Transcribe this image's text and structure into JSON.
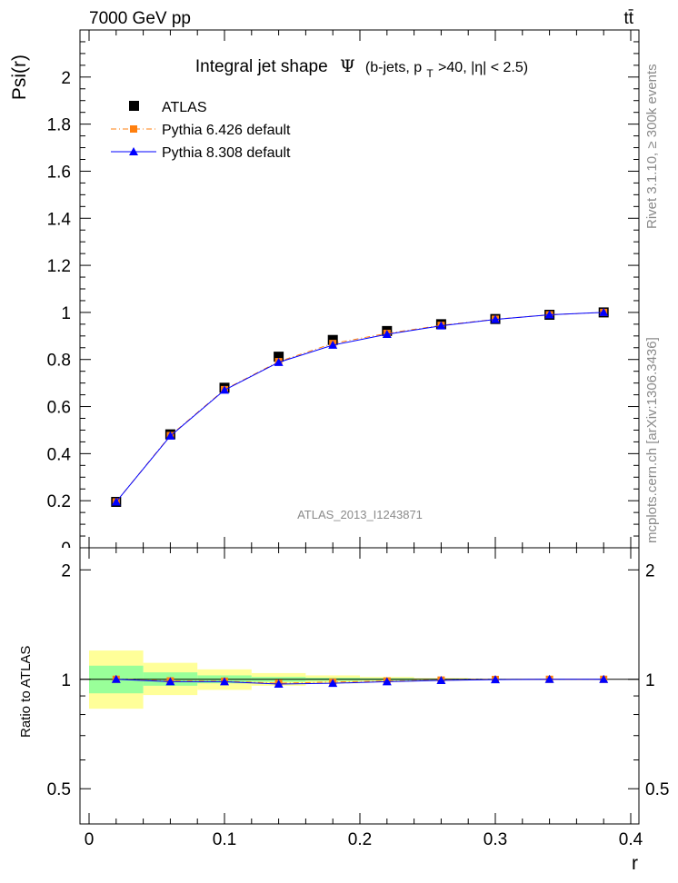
{
  "header": {
    "energy_label": "7000 GeV pp",
    "process_label": "tt̄"
  },
  "side_labels": {
    "rivet": "Rivet 3.1.10, ≥ 300k events",
    "mcplots": "mcplots.cern.ch [arXiv:1306.3436]"
  },
  "chart_data": {
    "type": "scatter",
    "title": {
      "main": "Integral jet shape",
      "symbol": "Ψ",
      "open": "(b-jets, p",
      "sub": "T",
      "rest": ">40, |η| < 2.5)"
    },
    "watermark": "ATLAS_2013_I1243871",
    "xlabel": "r",
    "ylabel": "Psi(r)",
    "ratio_ylabel": "Ratio to ATLAS",
    "xlim": [
      0,
      0.4
    ],
    "ylim": [
      0,
      2.2
    ],
    "ratio_ylim": [
      0.4,
      2.3
    ],
    "x_ticks": [
      "0",
      "0.1",
      "0.2",
      "0.3",
      "0.4"
    ],
    "y_ticks": [
      "0.2",
      "0.4",
      "0.6",
      "0.8",
      "1",
      "1.2",
      "1.4",
      "1.6",
      "1.8",
      "2"
    ],
    "ratio_ticks": [
      "0.5",
      "1",
      "2"
    ],
    "x": [
      0.02,
      0.06,
      0.1,
      0.14,
      0.18,
      0.22,
      0.26,
      0.3,
      0.34,
      0.38
    ],
    "bin_edges": [
      0.0,
      0.04,
      0.08,
      0.12,
      0.16,
      0.2,
      0.24,
      0.28,
      0.32,
      0.36,
      0.4
    ],
    "series": [
      {
        "name": "ATLAS",
        "marker": "square",
        "color": "#000000",
        "values": [
          0.195,
          0.482,
          0.68,
          0.812,
          0.883,
          0.921,
          0.95,
          0.972,
          0.99,
          1.0
        ]
      },
      {
        "name": "Pythia 6.426 default",
        "marker": "square",
        "color": "#ff7f0e",
        "line": "dashdot",
        "values": [
          0.195,
          0.477,
          0.672,
          0.791,
          0.868,
          0.911,
          0.945,
          0.971,
          0.99,
          1.0
        ]
      },
      {
        "name": "Pythia 8.308 default",
        "marker": "triangle",
        "color": "#0000ff",
        "line": "solid",
        "values": [
          0.195,
          0.475,
          0.67,
          0.788,
          0.861,
          0.907,
          0.943,
          0.97,
          0.99,
          1.0
        ]
      }
    ],
    "ratio_series": [
      {
        "name": "Pythia 6.426 default",
        "color": "#ff7f0e",
        "values": [
          1.0,
          0.99,
          0.988,
          0.975,
          0.983,
          0.989,
          0.995,
          0.999,
          1.0,
          1.0
        ]
      },
      {
        "name": "Pythia 8.308 default",
        "color": "#0000ff",
        "values": [
          1.0,
          0.985,
          0.985,
          0.97,
          0.975,
          0.985,
          0.993,
          0.998,
          1.0,
          1.0
        ]
      }
    ],
    "uncertainty_bands": {
      "stat_color": "#99ff99",
      "total_color": "#ffff99",
      "stat": [
        [
          0.915,
          1.09
        ],
        [
          0.96,
          1.045
        ],
        [
          0.975,
          1.025
        ],
        [
          0.985,
          1.015
        ],
        [
          0.99,
          1.01
        ],
        [
          0.993,
          1.007
        ],
        [
          0.996,
          1.004
        ],
        [
          0.998,
          1.002
        ],
        [
          0.999,
          1.001
        ],
        [
          0.9995,
          1.0005
        ]
      ],
      "total": [
        [
          0.83,
          1.2
        ],
        [
          0.905,
          1.11
        ],
        [
          0.935,
          1.065
        ],
        [
          0.96,
          1.04
        ],
        [
          0.975,
          1.025
        ],
        [
          0.985,
          1.015
        ],
        [
          0.992,
          1.008
        ],
        [
          0.996,
          1.004
        ],
        [
          0.999,
          1.001
        ],
        [
          0.9995,
          1.0005
        ]
      ]
    }
  }
}
